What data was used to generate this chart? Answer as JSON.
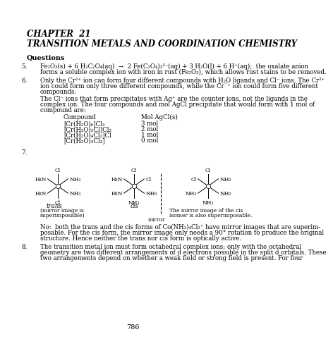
{
  "bg_color": "#ffffff",
  "page_number": "786",
  "chapter_title": "CHAPTER  21",
  "chapter_subtitle": "TRANSITION METALS AND COORDINATION CHEMISTRY",
  "section": "Questions",
  "item5_line1": "Fe₂O₃(s) + 6 H₂C₂O₄(aq)  →  2 Fe(C₂O₄)₃³⁻(aq) + 3 H₂O(l) + 6 H⁺(aq);  the oxalate anion",
  "item5_line2": "forms a soluble complex ion with iron in rust (Fe₂O₃), which allows rust stains to be removed.",
  "item6_line1": "Only the Cr²⁺ ion can form four different compounds with H₂O ligands and Cl⁻ ions. The Cr²⁺",
  "item6_line2": "ion could form only three different compounds, while the Cr´⁺ ion could form five different",
  "item6_line3": "compounds.",
  "item6_line4": "The Cl⁻ ions that form precipitates with Ag⁺ are the counter ions, not the ligands in the",
  "item6_line5": "complex ion. The four compounds and mol AgCl precipitate that would form with 1 mol of",
  "item6_line6": "compound are:",
  "table_col1_header": "Compound",
  "table_col2_header": "Mol AgCl(s)",
  "table_rows": [
    [
      "[Cr(H₂O)₆]Cl₃",
      "3 mol"
    ],
    [
      "[Cr(H₂O)₅Cl]Cl₂",
      "2 mol"
    ],
    [
      "[Cr(H₂O)₄Cl₂]Cl",
      "1 mol"
    ],
    [
      "[Cr(H₂O)₃Cl₃]",
      "0 mol"
    ]
  ],
  "note_line1": "No:  both the trans and the cis forms of Co(NH₃)₄Cl₂⁺ have mirror images that are superim-",
  "note_line2": "posable. For the cis form, the mirror image only needs a 90° rotation to produce the original",
  "note_line3": "structure. Hence neither the trans nor cis form is optically active.",
  "item8_line1": "The transition metal ion must form octahedral complex ions; only with the octahedral",
  "item8_line2": "geometry are two different arrangements of d electrons possible in the split d orbitals. These",
  "item8_line3": "two arrangements depend on whether a weak field or strong field is present. For four",
  "trans_label": "trans",
  "trans_sub": "(mirror image is",
  "trans_sub2": "superimposable)",
  "cis_label": "cis",
  "mirror_label": "mirror",
  "mirror_note1": "The mirror image of the cis",
  "mirror_note2": "isomer is also superimposable."
}
